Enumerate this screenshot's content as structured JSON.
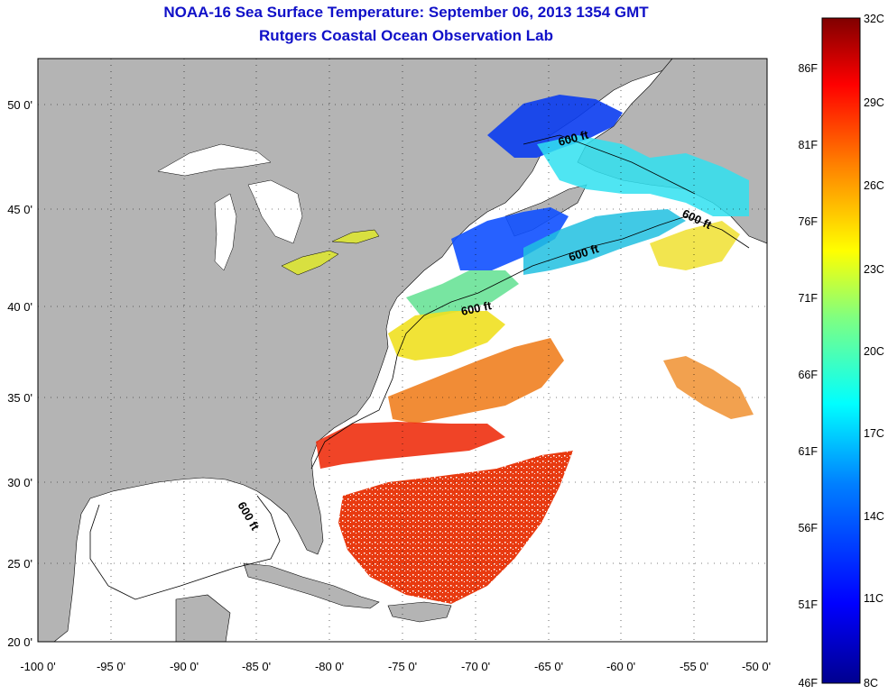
{
  "title": "NOAA-16 Sea Surface Temperature:  September 06, 2013 1354 GMT",
  "subtitle": "Rutgers Coastal Ocean Observation Lab",
  "x_ticks": [
    "-100 0'",
    "-95 0'",
    "-90 0'",
    "-85 0'",
    "-80 0'",
    "-75 0'",
    "-70 0'",
    "-65 0'",
    "-60 0'",
    "-55 0'",
    "-50 0'"
  ],
  "y_ticks": [
    "50 0'",
    "45 0'",
    "40 0'",
    "35 0'",
    "30 0'",
    "25 0'",
    "20 0'"
  ],
  "contour_labels": [
    "600 ft",
    "600 ft",
    "600 ft",
    "600 ft",
    "600 ft"
  ],
  "colorbar": {
    "fahrenheit": [
      "86F",
      "81F",
      "76F",
      "71F",
      "66F",
      "61F",
      "56F",
      "51F",
      "46F"
    ],
    "celsius": [
      "32C",
      "29C",
      "26C",
      "23C",
      "20C",
      "17C",
      "14C",
      "11C",
      "8C"
    ],
    "colors": [
      "#00008f",
      "#0000ff",
      "#0080ff",
      "#00ffff",
      "#80ff80",
      "#ffff00",
      "#ff8000",
      "#ff0000",
      "#800000"
    ]
  },
  "colors": {
    "land": "#b4b4b4",
    "ocean_no_data": "#ffffff",
    "title": "#1010c8"
  }
}
